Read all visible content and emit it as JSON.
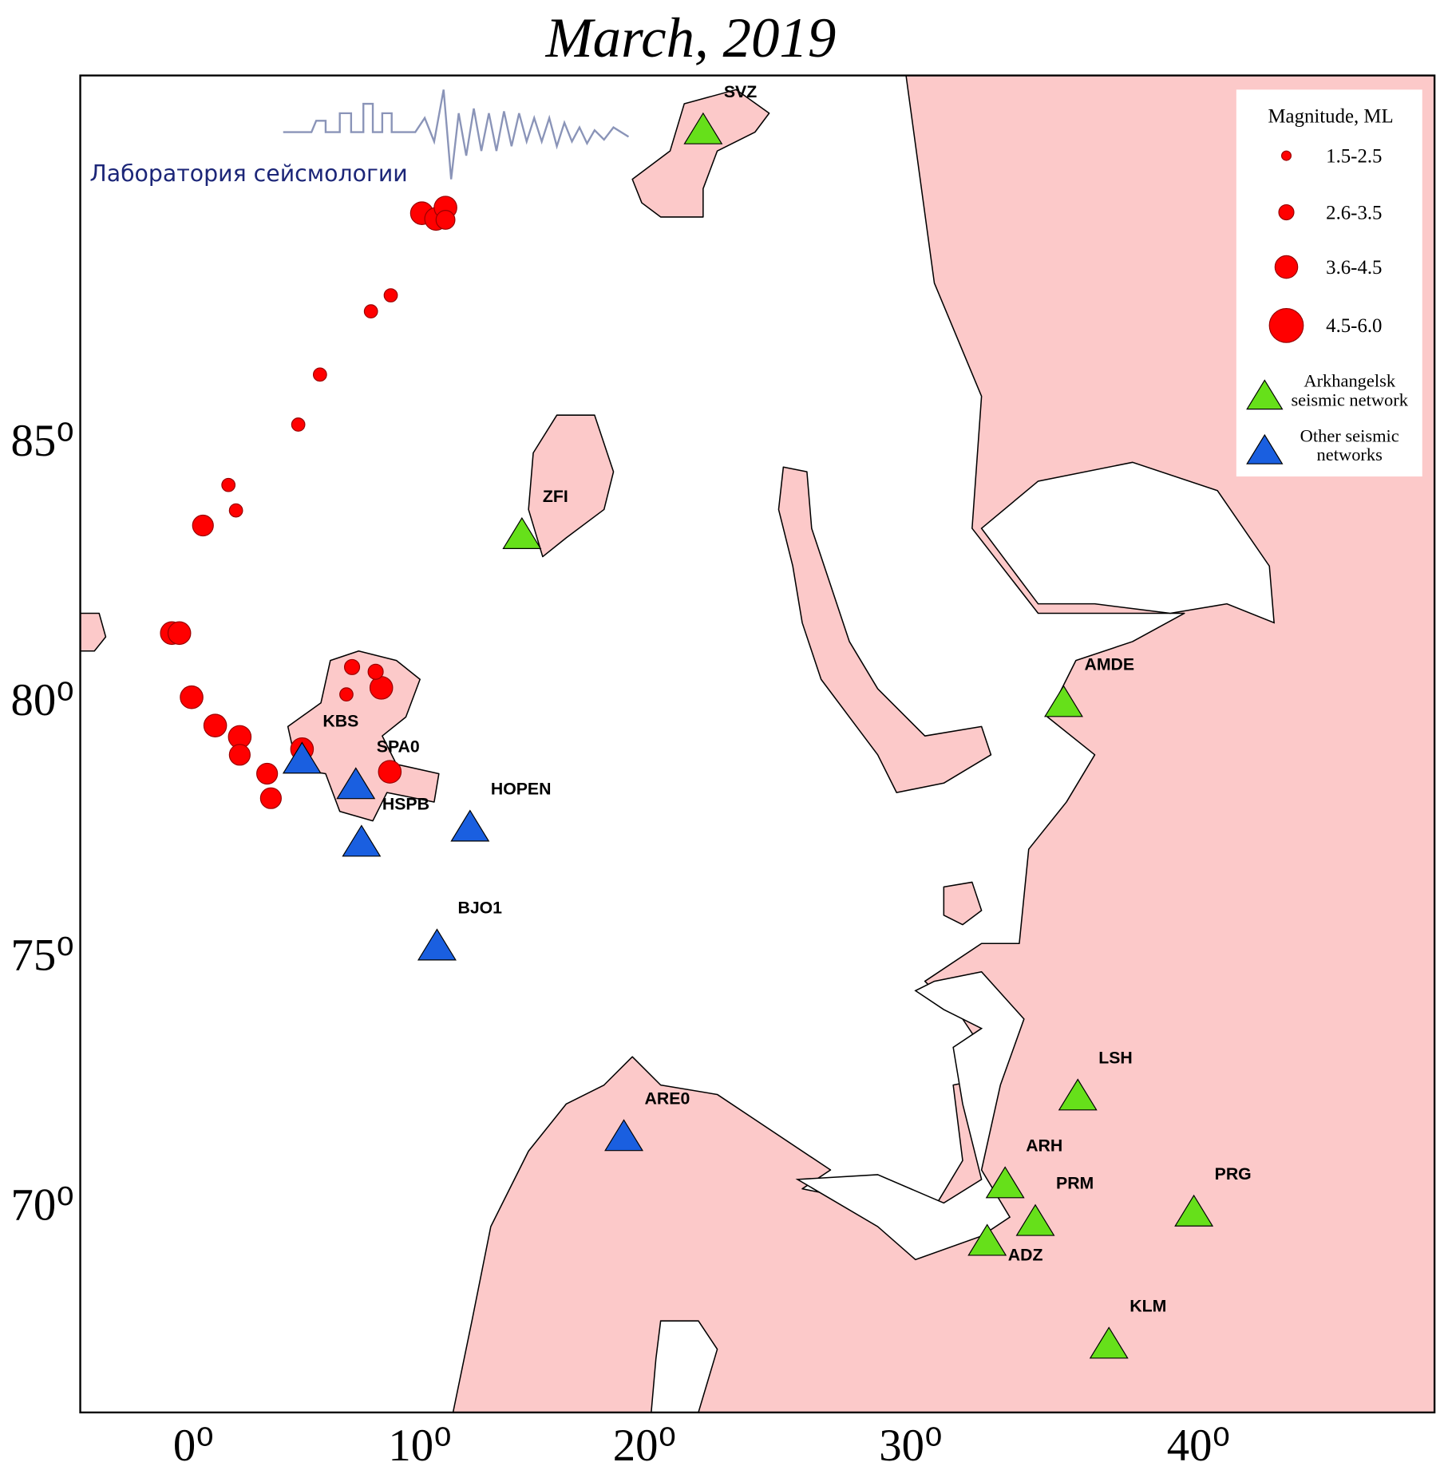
{
  "title": "March, 2019",
  "logo": "Лаборатория сейсмологии",
  "lat_labels": [
    "85⁰",
    "80⁰",
    "75⁰",
    "70⁰"
  ],
  "lon_labels": [
    "0⁰",
    "10⁰",
    "20⁰",
    "30⁰",
    "40⁰"
  ],
  "legend": {
    "title": "Magnitude, ML",
    "magnitudes": [
      "1.5-2.5",
      "2.6-3.5",
      "3.6-4.5",
      "4.5-6.0"
    ],
    "networks": [
      [
        "Arkhangelsk",
        "seismic network"
      ],
      [
        "Other seismic",
        "networks"
      ]
    ]
  },
  "arkhangelsk_stations": [
    "SVZ",
    "ZFI",
    "AMDE",
    "LSH",
    "ARH",
    "PRM",
    "PRG",
    "ADZ",
    "KLM"
  ],
  "other_stations": [
    "KBS",
    "SPA0",
    "HSPB",
    "HOPEN",
    "BJO1",
    "ARE0"
  ]
}
